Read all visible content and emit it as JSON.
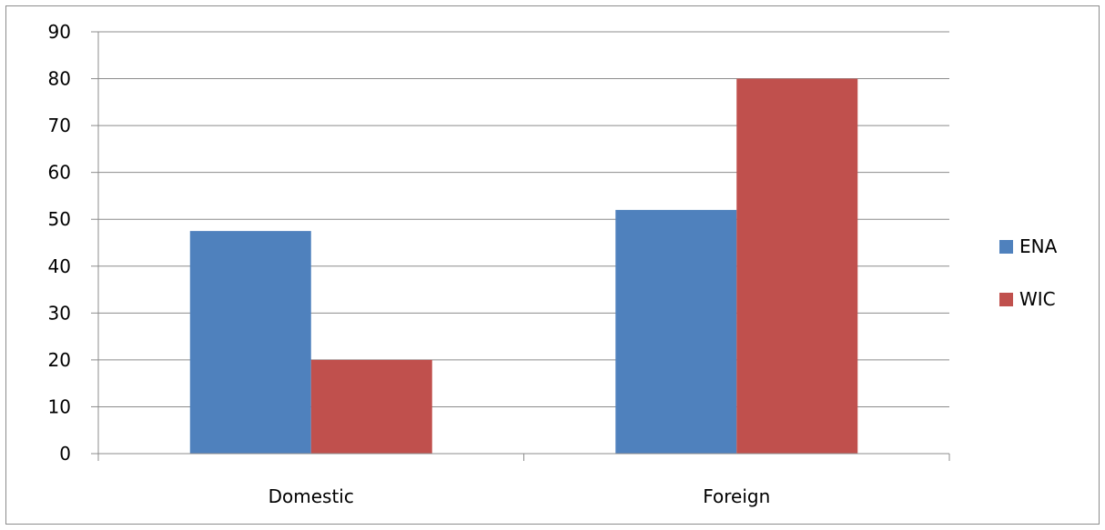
{
  "chart_data": {
    "type": "bar",
    "categories": [
      "Domestic",
      "Foreign"
    ],
    "series": [
      {
        "name": "ENA",
        "values": [
          47.5,
          52
        ],
        "color": "#4f81bd"
      },
      {
        "name": "WIC",
        "values": [
          20,
          80
        ],
        "color": "#c0504d"
      }
    ],
    "ylim": [
      0,
      90
    ],
    "yticks": [
      0,
      10,
      20,
      30,
      40,
      50,
      60,
      70,
      80,
      90
    ],
    "grid": true,
    "legend": "right",
    "title": "",
    "xlabel": "",
    "ylabel": ""
  }
}
